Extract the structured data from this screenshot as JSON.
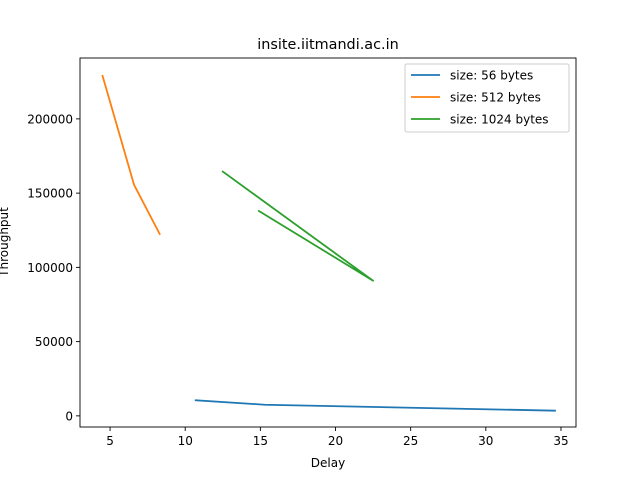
{
  "chart_data": {
    "type": "line",
    "title": "insite.iitmandi.ac.in",
    "xlabel": "Delay",
    "ylabel": "Throughput",
    "xlim": [
      3.0,
      36.0
    ],
    "ylim": [
      -7500,
      241000
    ],
    "xticks": [
      5,
      10,
      15,
      20,
      25,
      30,
      35
    ],
    "yticks": [
      0,
      50000,
      100000,
      150000,
      200000
    ],
    "grid": false,
    "legend_position": "upper right",
    "series": [
      {
        "name": "size: 56 bytes",
        "color": "#1f77b4",
        "x": [
          10.7,
          15.3,
          34.6
        ],
        "y": [
          10500,
          7500,
          3500
        ]
      },
      {
        "name": "size: 512 bytes",
        "color": "#ff7f0e",
        "x": [
          4.5,
          6.6,
          8.3
        ],
        "y": [
          229000,
          155500,
          122500
        ]
      },
      {
        "name": "size: 1024 bytes",
        "color": "#2ca02c",
        "x": [
          12.5,
          22.5,
          14.9
        ],
        "y": [
          164500,
          91000,
          138000
        ]
      }
    ]
  }
}
